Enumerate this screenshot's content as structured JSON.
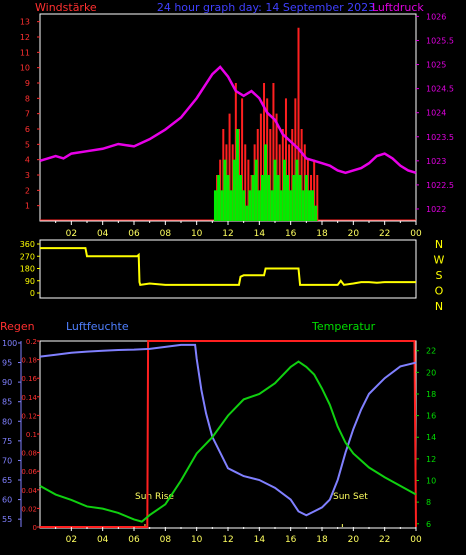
{
  "header": {
    "left_title": "Windstärke",
    "center_title": "24 hour graph day: 14 September 2023",
    "right_title": "Luftdruck"
  },
  "time_ticks": [
    "02",
    "04",
    "06",
    "08",
    "10",
    "12",
    "14",
    "16",
    "18",
    "20",
    "22",
    "00"
  ],
  "colors": {
    "background": "#000000",
    "grid": "#ffffff",
    "wind_gust": "#ff2020",
    "wind_mean": "#00ee00",
    "pressure": "#e800e8",
    "direction": "#ffff00",
    "humidity": "#8080ff",
    "temperature": "#10d010",
    "rain": "#ff2020",
    "axis_left_wind": "#ff3030",
    "axis_right_pressure": "#e000e0",
    "axis_left_rain": "#ff3030",
    "axis_humidity": "#8080ff",
    "axis_temp": "#00dd00",
    "sun_label": "#ffff60",
    "ylabel_humidity": "#5080ff"
  },
  "chart_data": [
    {
      "type": "bar",
      "title": "Windstärke",
      "x_range": [
        0,
        24
      ],
      "y_left_ticks": [
        "1",
        "2",
        "3",
        "4",
        "5",
        "6",
        "7",
        "8",
        "9",
        "10",
        "11",
        "12",
        "13"
      ],
      "y_left_range": [
        0,
        13.5
      ],
      "gust_series": [
        [
          11.3,
          3
        ],
        [
          11.5,
          4
        ],
        [
          11.7,
          6
        ],
        [
          11.9,
          5
        ],
        [
          12.1,
          7
        ],
        [
          12.3,
          5
        ],
        [
          12.5,
          9
        ],
        [
          12.7,
          6
        ],
        [
          12.9,
          8
        ],
        [
          13.1,
          5
        ],
        [
          13.3,
          4
        ],
        [
          13.5,
          3
        ],
        [
          13.7,
          5
        ],
        [
          13.9,
          6
        ],
        [
          14.1,
          7
        ],
        [
          14.3,
          9
        ],
        [
          14.5,
          8
        ],
        [
          14.7,
          6
        ],
        [
          14.9,
          9
        ],
        [
          15.1,
          7
        ],
        [
          15.3,
          5
        ],
        [
          15.5,
          6
        ],
        [
          15.7,
          8
        ],
        [
          15.9,
          5
        ],
        [
          16.1,
          6
        ],
        [
          16.3,
          8
        ],
        [
          16.5,
          12.6
        ],
        [
          16.7,
          6
        ],
        [
          16.9,
          5
        ],
        [
          17.1,
          4
        ],
        [
          17.3,
          3
        ],
        [
          17.5,
          4
        ],
        [
          17.7,
          3
        ]
      ],
      "mean_series": [
        [
          11.2,
          2
        ],
        [
          11.4,
          3
        ],
        [
          11.6,
          2
        ],
        [
          11.8,
          4
        ],
        [
          12.0,
          3
        ],
        [
          12.2,
          2
        ],
        [
          12.4,
          4
        ],
        [
          12.6,
          6
        ],
        [
          12.8,
          3
        ],
        [
          13.0,
          2
        ],
        [
          13.2,
          1
        ],
        [
          13.4,
          2
        ],
        [
          13.6,
          3
        ],
        [
          13.8,
          4
        ],
        [
          14.0,
          2
        ],
        [
          14.2,
          3
        ],
        [
          14.4,
          5
        ],
        [
          14.6,
          3
        ],
        [
          14.8,
          2
        ],
        [
          15.0,
          4
        ],
        [
          15.2,
          3
        ],
        [
          15.4,
          2
        ],
        [
          15.6,
          4
        ],
        [
          15.8,
          3
        ],
        [
          16.0,
          2
        ],
        [
          16.2,
          3
        ],
        [
          16.4,
          4
        ],
        [
          16.6,
          3
        ],
        [
          16.8,
          2
        ],
        [
          17.0,
          3
        ],
        [
          17.2,
          2
        ],
        [
          17.4,
          2
        ],
        [
          17.6,
          1
        ]
      ],
      "pressure_right_ticks": [
        "1026",
        "1025.5",
        "1025",
        "1024.5",
        "1024",
        "1023.5",
        "1023",
        "1022.5",
        "1022"
      ],
      "pressure_range": [
        1021.75,
        1026.05
      ],
      "pressure_series": [
        [
          0,
          1023.0
        ],
        [
          0.5,
          1023.05
        ],
        [
          1,
          1023.1
        ],
        [
          1.5,
          1023.05
        ],
        [
          2,
          1023.15
        ],
        [
          3,
          1023.2
        ],
        [
          4,
          1023.25
        ],
        [
          5,
          1023.35
        ],
        [
          6,
          1023.3
        ],
        [
          7,
          1023.45
        ],
        [
          8,
          1023.65
        ],
        [
          9,
          1023.9
        ],
        [
          10,
          1024.3
        ],
        [
          10.5,
          1024.55
        ],
        [
          11,
          1024.8
        ],
        [
          11.5,
          1024.95
        ],
        [
          12,
          1024.75
        ],
        [
          12.5,
          1024.45
        ],
        [
          13,
          1024.35
        ],
        [
          13.5,
          1024.45
        ],
        [
          14,
          1024.3
        ],
        [
          14.5,
          1024.0
        ],
        [
          15,
          1023.85
        ],
        [
          15.5,
          1023.55
        ],
        [
          16,
          1023.4
        ],
        [
          16.5,
          1023.25
        ],
        [
          17,
          1023.05
        ],
        [
          17.5,
          1023.0
        ],
        [
          18,
          1022.95
        ],
        [
          18.5,
          1022.9
        ],
        [
          19,
          1022.8
        ],
        [
          19.5,
          1022.75
        ],
        [
          20,
          1022.8
        ],
        [
          20.5,
          1022.85
        ],
        [
          21,
          1022.95
        ],
        [
          21.5,
          1023.1
        ],
        [
          22,
          1023.15
        ],
        [
          22.5,
          1023.05
        ],
        [
          23,
          1022.9
        ],
        [
          23.5,
          1022.8
        ],
        [
          24,
          1022.75
        ]
      ]
    },
    {
      "type": "line",
      "title": "",
      "x_range": [
        0,
        24
      ],
      "y_left_ticks": [
        "360",
        "270",
        "180",
        "90",
        "0"
      ],
      "y_range": [
        0,
        360
      ],
      "right_letters": [
        "N",
        "W",
        "S",
        "O",
        "N"
      ],
      "direction_series": [
        [
          0,
          330
        ],
        [
          2.9,
          330
        ],
        [
          3,
          270
        ],
        [
          6.2,
          270
        ],
        [
          6.3,
          280
        ],
        [
          6.35,
          80
        ],
        [
          6.4,
          60
        ],
        [
          7,
          70
        ],
        [
          8,
          60
        ],
        [
          9,
          60
        ],
        [
          10,
          60
        ],
        [
          11,
          60
        ],
        [
          12,
          60
        ],
        [
          12.7,
          60
        ],
        [
          12.8,
          120
        ],
        [
          13,
          130
        ],
        [
          14,
          130
        ],
        [
          14.3,
          130
        ],
        [
          14.4,
          180
        ],
        [
          16,
          180
        ],
        [
          16.5,
          180
        ],
        [
          16.6,
          60
        ],
        [
          18,
          60
        ],
        [
          19,
          60
        ],
        [
          19.2,
          90
        ],
        [
          19.4,
          60
        ],
        [
          20,
          70
        ],
        [
          20.5,
          80
        ],
        [
          21,
          80
        ],
        [
          21.5,
          75
        ],
        [
          22,
          80
        ],
        [
          23,
          80
        ],
        [
          24,
          80
        ]
      ]
    },
    {
      "type": "line",
      "title": "",
      "labels": {
        "rain": "Regen",
        "humidity": "Luftfeuchte",
        "temperature": "Temperatur"
      },
      "x_range": [
        0,
        24
      ],
      "rain_ticks": [
        "0",
        "0.02",
        "0.04",
        "0.06",
        "0.08",
        "0.1",
        "0.12",
        "0.14",
        "0.16",
        "0.18",
        "0.2"
      ],
      "rain_range": [
        0,
        0.2
      ],
      "humidity_ticks": [
        "55",
        "60",
        "65",
        "70",
        "75",
        "80",
        "85",
        "90",
        "95",
        "100"
      ],
      "humidity_range": [
        53,
        100.5
      ],
      "temp_ticks": [
        "6",
        "8",
        "10",
        "12",
        "14",
        "16",
        "18",
        "20",
        "22"
      ],
      "temp_range": [
        5.7,
        22.9
      ],
      "humidity_series": [
        [
          0,
          96.5
        ],
        [
          1,
          97
        ],
        [
          2,
          97.5
        ],
        [
          3,
          97.8
        ],
        [
          4,
          98
        ],
        [
          5,
          98.2
        ],
        [
          6,
          98.3
        ],
        [
          7,
          98.5
        ],
        [
          8,
          99
        ],
        [
          9,
          99.5
        ],
        [
          9.9,
          99.5
        ],
        [
          10,
          96
        ],
        [
          10.3,
          88
        ],
        [
          10.6,
          82
        ],
        [
          11,
          76
        ],
        [
          11.5,
          72
        ],
        [
          12,
          68
        ],
        [
          12.5,
          67
        ],
        [
          13,
          66
        ],
        [
          14,
          65
        ],
        [
          15,
          63
        ],
        [
          16,
          60
        ],
        [
          16.5,
          57
        ],
        [
          17,
          56
        ],
        [
          17.5,
          57
        ],
        [
          18,
          58
        ],
        [
          18.5,
          60
        ],
        [
          19,
          65
        ],
        [
          19.5,
          72
        ],
        [
          20,
          78
        ],
        [
          20.5,
          83
        ],
        [
          21,
          87
        ],
        [
          22,
          91
        ],
        [
          23,
          94
        ],
        [
          24,
          95
        ]
      ],
      "temperature_series": [
        [
          0,
          9.5
        ],
        [
          1,
          8.7
        ],
        [
          2,
          8.2
        ],
        [
          3,
          7.6
        ],
        [
          4,
          7.4
        ],
        [
          5,
          7
        ],
        [
          6,
          6.4
        ],
        [
          6.5,
          6.2
        ],
        [
          7,
          6.8
        ],
        [
          8,
          7.8
        ],
        [
          9,
          10
        ],
        [
          10,
          12.5
        ],
        [
          11,
          14
        ],
        [
          12,
          16
        ],
        [
          13,
          17.5
        ],
        [
          14,
          18
        ],
        [
          15,
          19
        ],
        [
          16,
          20.5
        ],
        [
          16.5,
          21
        ],
        [
          17,
          20.5
        ],
        [
          17.5,
          19.8
        ],
        [
          18,
          18.5
        ],
        [
          18.5,
          17
        ],
        [
          19,
          15
        ],
        [
          19.5,
          13.5
        ],
        [
          20,
          12.5
        ],
        [
          21,
          11.2
        ],
        [
          22,
          10.3
        ],
        [
          23,
          9.5
        ],
        [
          24,
          8.7
        ]
      ],
      "rain_series": [
        [
          0,
          0
        ],
        [
          6.85,
          0
        ],
        [
          6.9,
          0.2
        ],
        [
          23.9,
          0.2
        ],
        [
          24,
          0
        ]
      ],
      "annotations": {
        "sun_rise": "Sun Rise",
        "sun_set": "Sun Set"
      },
      "sun_rise_hour": 6.7,
      "sun_set_hour": 19.3
    }
  ]
}
